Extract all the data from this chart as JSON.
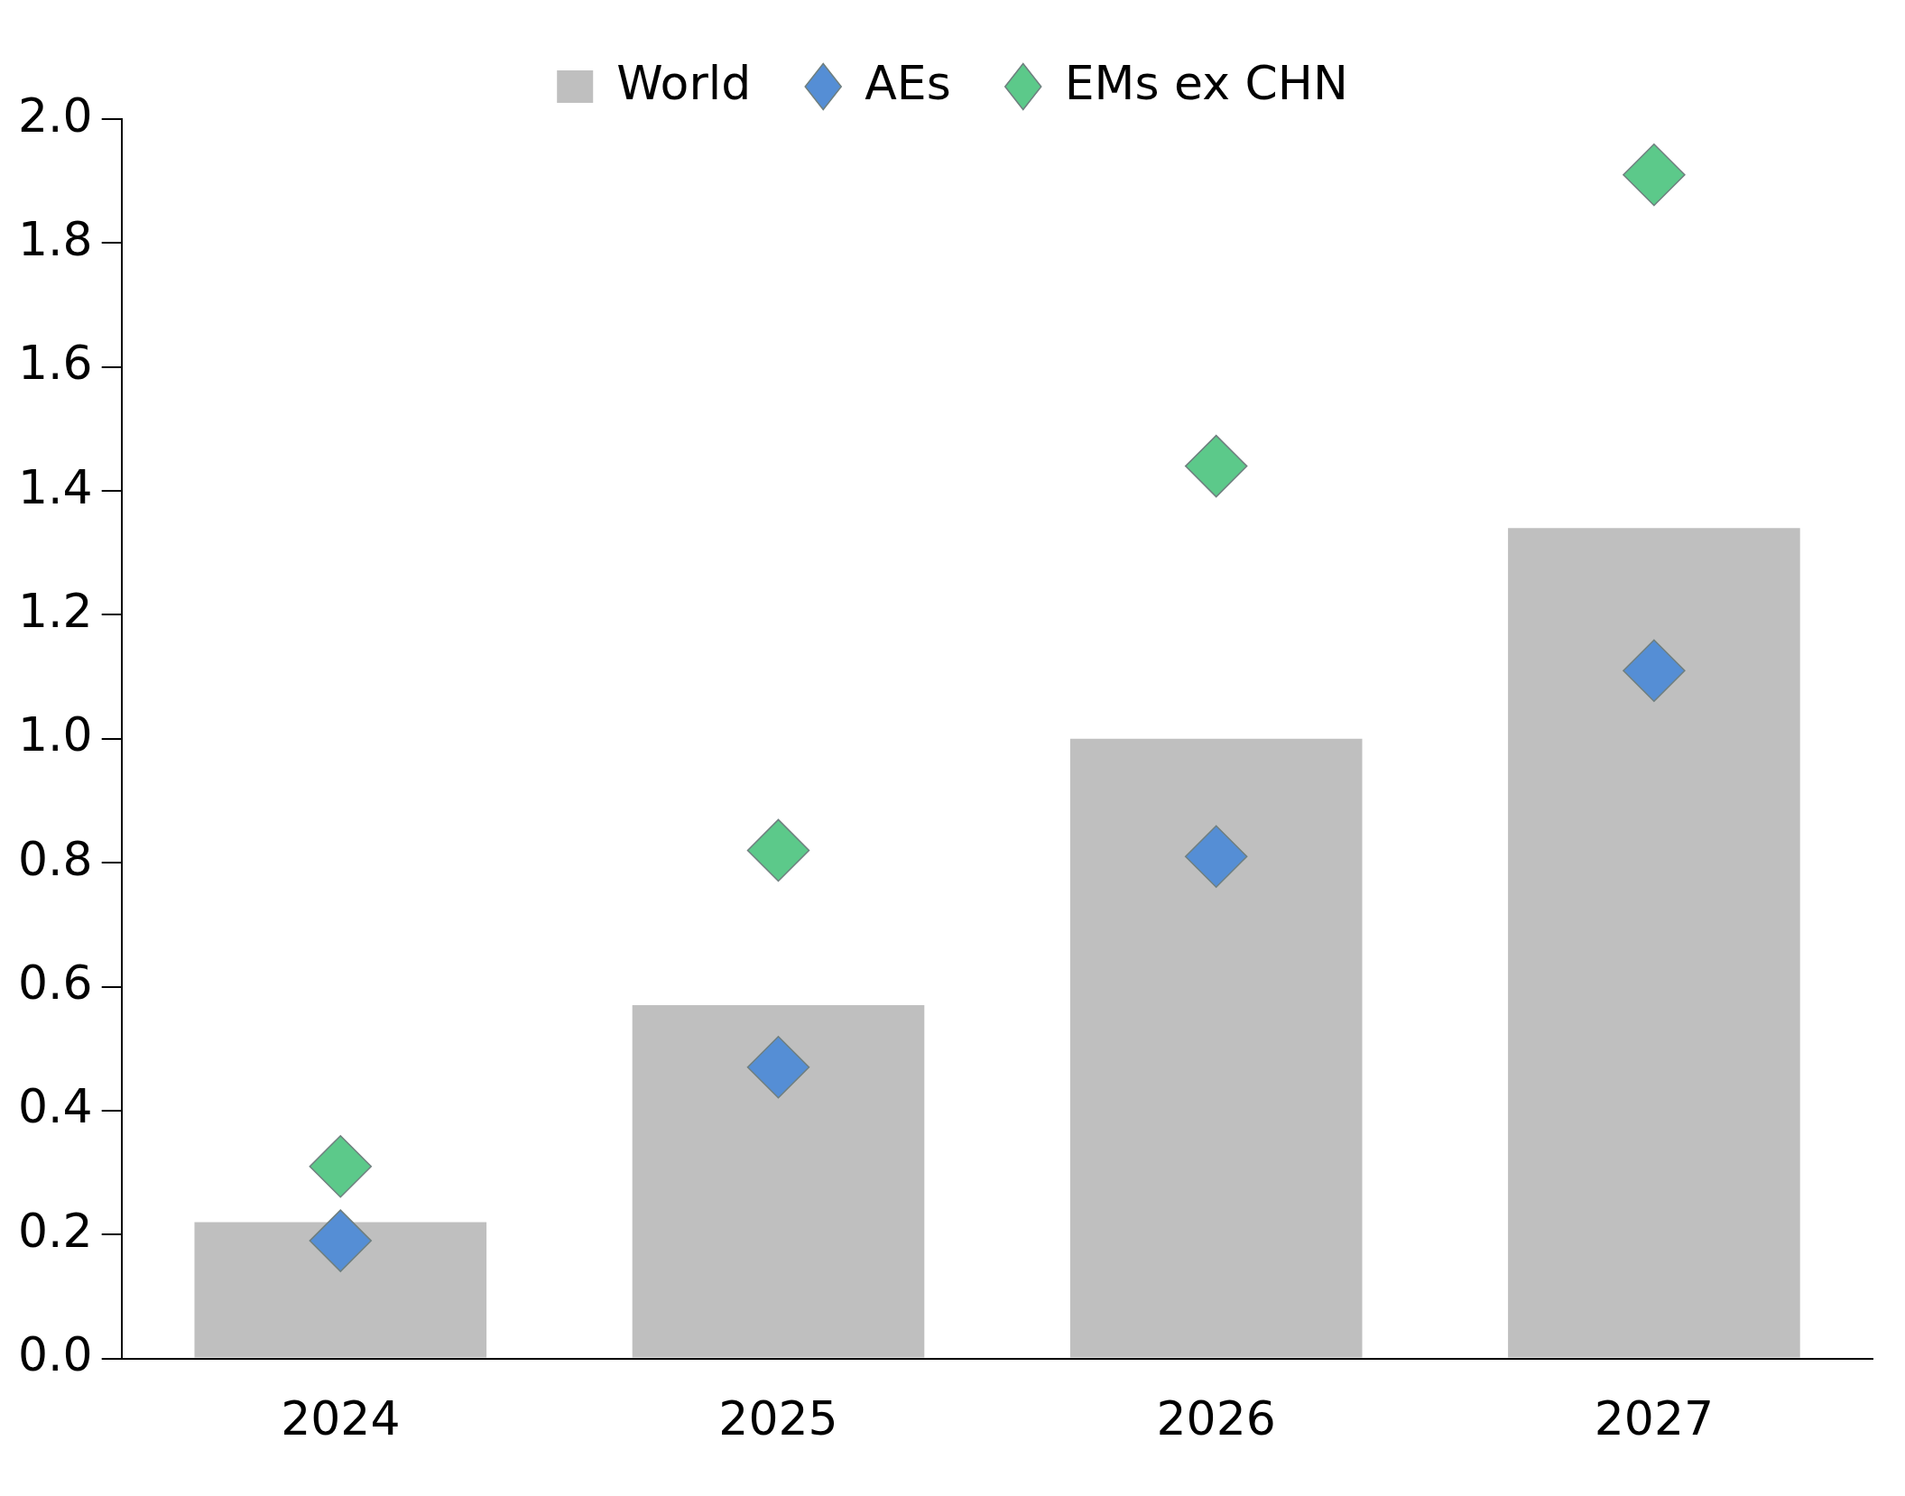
{
  "chart_data": {
    "type": "bar",
    "categories": [
      "2024",
      "2025",
      "2026",
      "2027"
    ],
    "series": [
      {
        "name": "World",
        "color": "#bfbfbf",
        "values": [
          0.22,
          0.57,
          1.0,
          1.34
        ]
      },
      {
        "name": "AEs",
        "type": "scatter",
        "color": "#558ed5",
        "values": [
          0.19,
          0.47,
          0.81,
          1.11
        ]
      },
      {
        "name": "EMs ex CHN",
        "type": "scatter",
        "color": "#5cc98a",
        "values": [
          0.31,
          0.82,
          1.44,
          1.91
        ]
      }
    ],
    "ylim": [
      0,
      2.0
    ],
    "yticks": [
      {
        "value": 0,
        "label": "0.0"
      },
      {
        "value": 0.2,
        "label": "0.2"
      },
      {
        "value": 0.4,
        "label": "0.4"
      },
      {
        "value": 0.6,
        "label": "0.6"
      },
      {
        "value": 0.8,
        "label": "0.8"
      },
      {
        "value": 1,
        "label": "1.0"
      },
      {
        "value": 1.2,
        "label": "1.2"
      },
      {
        "value": 1.4,
        "label": "1.4"
      },
      {
        "value": 1.6,
        "label": "1.6"
      },
      {
        "value": 1.8,
        "label": "1.8"
      },
      {
        "value": 2,
        "label": "2.0"
      }
    ],
    "grid": false,
    "legend": "top",
    "marker": "diamond"
  }
}
